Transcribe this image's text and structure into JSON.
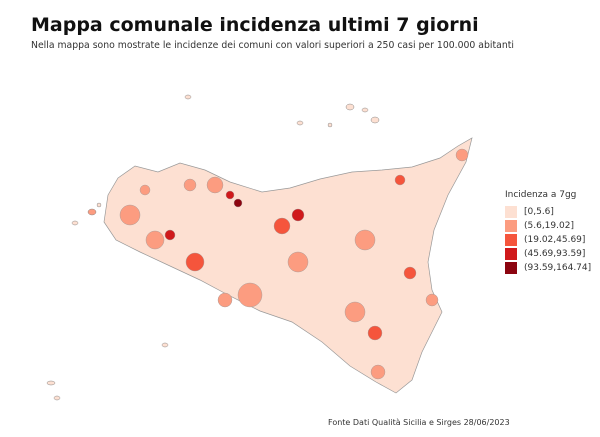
{
  "title": "Mappa comunale incidenza ultimi 7 giorni",
  "subtitle": "Nella mappa sono mostrate le incidenze dei comuni con valori superiori a 250 casi per 100.000 abitanti",
  "legend": {
    "title": "Incidenza a 7gg",
    "classes": [
      {
        "label": "[0,5.6]",
        "color": "#fde0d2"
      },
      {
        "label": "(5.6,19.02]",
        "color": "#fc9c80"
      },
      {
        "label": "(19.02,45.69]",
        "color": "#f5553c"
      },
      {
        "label": "(45.69,93.59]",
        "color": "#d0191b"
      },
      {
        "label": "(93.59,164.74]",
        "color": "#8c0510"
      }
    ]
  },
  "source": "Fonte Dati Qualità Sicilia e Sirges 28/06/2023"
}
